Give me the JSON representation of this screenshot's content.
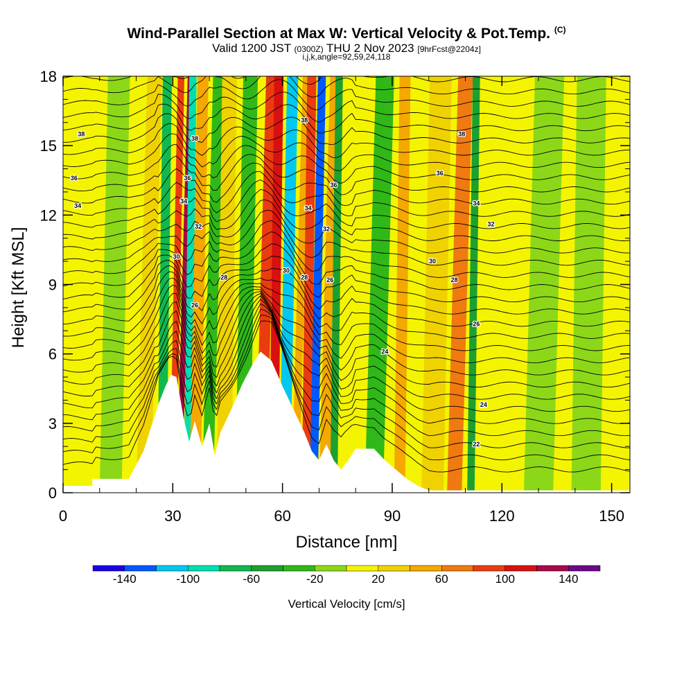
{
  "title": {
    "main": "Wind-Parallel Section at Max W: Vertical Velocity & Pot.Temp.",
    "copyright": "(C)",
    "valid_prefix": "Valid 1200 JST",
    "valid_utc": "(0300Z)",
    "valid_date": "THU 2 Nov 2023",
    "forecast": "[9hrFcst@2204z]",
    "indices": "i,j,k,angle=92,59,24,118"
  },
  "chart_data": {
    "type": "heatmap",
    "xlabel": "Distance [nm]",
    "ylabel": "Height [Kft MSL]",
    "xlim": [
      0,
      155
    ],
    "ylim": [
      0,
      18
    ],
    "x_ticks": [
      0,
      30,
      60,
      90,
      120,
      150
    ],
    "y_ticks": [
      0,
      3,
      6,
      9,
      12,
      15,
      18
    ],
    "colorbar": {
      "title": "Vertical Velocity [cm/s]",
      "labels": [
        -140,
        -100,
        -60,
        -20,
        20,
        60,
        100,
        140
      ],
      "boundaries": [
        -160,
        -140,
        -120,
        -100,
        -80,
        -60,
        -40,
        -20,
        0,
        20,
        40,
        60,
        80,
        100,
        120,
        140,
        160
      ],
      "colors": [
        "#1a00e6",
        "#0059ff",
        "#00c8f0",
        "#00dfb0",
        "#10b850",
        "#1ca030",
        "#30b818",
        "#8cd818",
        "#f4f400",
        "#f0d200",
        "#f4a800",
        "#f07a10",
        "#ea3c10",
        "#d81010",
        "#a80848",
        "#6a0888"
      ]
    },
    "vertical_velocity_bands": [
      {
        "x": 5,
        "width": 5,
        "value": 10
      },
      {
        "x": 13,
        "width": 6,
        "value": -10
      },
      {
        "x": 22,
        "width": 4,
        "value": 25
      },
      {
        "x": 27,
        "width": 2.5,
        "value": -75
      },
      {
        "x": 30,
        "width": 1.8,
        "value": 85
      },
      {
        "x": 31.8,
        "width": 1.5,
        "value": 125
      },
      {
        "x": 34,
        "width": 2,
        "value": -95
      },
      {
        "x": 36,
        "width": 3,
        "value": 50
      },
      {
        "x": 39.5,
        "width": 3,
        "value": -35
      },
      {
        "x": 44,
        "width": 4,
        "value": 20
      },
      {
        "x": 49,
        "width": 4,
        "value": -30
      },
      {
        "x": 54,
        "width": 3,
        "value": 85
      },
      {
        "x": 57.5,
        "width": 2.5,
        "value": 110
      },
      {
        "x": 60.5,
        "width": 3,
        "value": -115
      },
      {
        "x": 63.5,
        "width": 2,
        "value": 45
      },
      {
        "x": 66.5,
        "width": 2.5,
        "value": 95
      },
      {
        "x": 68.5,
        "width": 2.2,
        "value": -135
      },
      {
        "x": 71.5,
        "width": 3,
        "value": 50
      },
      {
        "x": 74,
        "width": 2,
        "value": -55
      },
      {
        "x": 78,
        "width": 5,
        "value": 15
      },
      {
        "x": 85,
        "width": 5,
        "value": -35
      },
      {
        "x": 92,
        "width": 3,
        "value": 55
      },
      {
        "x": 101,
        "width": 6,
        "value": 25
      },
      {
        "x": 107,
        "width": 4,
        "value": 70
      },
      {
        "x": 111.5,
        "width": 2,
        "value": -50
      },
      {
        "x": 118,
        "width": 6,
        "value": 15
      },
      {
        "x": 130,
        "width": 8,
        "value": -15
      },
      {
        "x": 143,
        "width": 8,
        "value": -10
      },
      {
        "x": 153,
        "width": 4,
        "value": 5
      }
    ],
    "terrain_kft": [
      {
        "x": 0,
        "h": 0.3
      },
      {
        "x": 8,
        "h": 0.3
      },
      {
        "x": 8,
        "h": 0.6
      },
      {
        "x": 18,
        "h": 0.6
      },
      {
        "x": 20,
        "h": 1.2
      },
      {
        "x": 22,
        "h": 1.8
      },
      {
        "x": 24,
        "h": 2.8
      },
      {
        "x": 26,
        "h": 3.8
      },
      {
        "x": 28,
        "h": 4.6
      },
      {
        "x": 29.5,
        "h": 5.1
      },
      {
        "x": 31,
        "h": 5.0
      },
      {
        "x": 33,
        "h": 3.2
      },
      {
        "x": 34.5,
        "h": 2.2
      },
      {
        "x": 36,
        "h": 3.1
      },
      {
        "x": 38,
        "h": 2.0
      },
      {
        "x": 40,
        "h": 3.0
      },
      {
        "x": 41.5,
        "h": 1.6
      },
      {
        "x": 43,
        "h": 2.6
      },
      {
        "x": 46,
        "h": 3.6
      },
      {
        "x": 49,
        "h": 4.7
      },
      {
        "x": 52,
        "h": 5.6
      },
      {
        "x": 54,
        "h": 6.1
      },
      {
        "x": 57,
        "h": 5.7
      },
      {
        "x": 60,
        "h": 4.6
      },
      {
        "x": 63,
        "h": 3.6
      },
      {
        "x": 66,
        "h": 2.6
      },
      {
        "x": 68,
        "h": 1.8
      },
      {
        "x": 70,
        "h": 1.4
      },
      {
        "x": 72,
        "h": 2.1
      },
      {
        "x": 74,
        "h": 1.4
      },
      {
        "x": 76,
        "h": 1.0
      },
      {
        "x": 78,
        "h": 1.4
      },
      {
        "x": 80,
        "h": 1.9
      },
      {
        "x": 85,
        "h": 1.9
      },
      {
        "x": 88,
        "h": 1.4
      },
      {
        "x": 91,
        "h": 1.0
      },
      {
        "x": 94,
        "h": 0.6
      },
      {
        "x": 97,
        "h": 0.3
      },
      {
        "x": 100,
        "h": 0.1
      },
      {
        "x": 155,
        "h": 0.1
      }
    ],
    "pot_temp_contour_labels": [
      {
        "x": 5,
        "y": 15.5,
        "text": "38"
      },
      {
        "x": 3,
        "y": 13.6,
        "text": "36"
      },
      {
        "x": 4,
        "y": 12.4,
        "text": "34"
      },
      {
        "x": 36,
        "y": 15.3,
        "text": "38"
      },
      {
        "x": 34,
        "y": 13.6,
        "text": "36"
      },
      {
        "x": 33,
        "y": 12.6,
        "text": "34"
      },
      {
        "x": 37,
        "y": 11.5,
        "text": "32"
      },
      {
        "x": 31,
        "y": 10.2,
        "text": "30"
      },
      {
        "x": 44,
        "y": 9.3,
        "text": "28"
      },
      {
        "x": 36,
        "y": 8.1,
        "text": "26"
      },
      {
        "x": 66,
        "y": 16.1,
        "text": "38"
      },
      {
        "x": 74,
        "y": 13.3,
        "text": "36"
      },
      {
        "x": 67,
        "y": 12.3,
        "text": "34"
      },
      {
        "x": 72,
        "y": 11.4,
        "text": "32"
      },
      {
        "x": 61,
        "y": 9.6,
        "text": "30"
      },
      {
        "x": 66,
        "y": 9.3,
        "text": "28"
      },
      {
        "x": 73,
        "y": 9.2,
        "text": "26"
      },
      {
        "x": 109,
        "y": 15.5,
        "text": "38"
      },
      {
        "x": 103,
        "y": 13.8,
        "text": "36"
      },
      {
        "x": 113,
        "y": 12.5,
        "text": "34"
      },
      {
        "x": 117,
        "y": 11.6,
        "text": "32"
      },
      {
        "x": 101,
        "y": 10.0,
        "text": "30"
      },
      {
        "x": 107,
        "y": 9.2,
        "text": "28"
      },
      {
        "x": 113,
        "y": 7.3,
        "text": "26"
      },
      {
        "x": 88,
        "y": 6.1,
        "text": "24"
      },
      {
        "x": 115,
        "y": 3.8,
        "text": "24"
      },
      {
        "x": 113,
        "y": 2.1,
        "text": "22"
      }
    ]
  }
}
